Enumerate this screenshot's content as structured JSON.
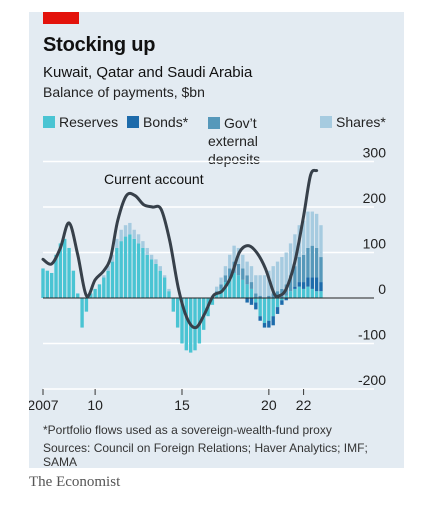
{
  "colors": {
    "reserves": "#4ac4d3",
    "bonds": "#1d6bab",
    "deposits": "#5698ba",
    "shares": "#a6cbe0",
    "current_account": "#37404a",
    "economist_red": "#e3120b"
  },
  "header": {
    "title": "Stocking up",
    "subtitle": "Kuwait, Qatar and Saudi Arabia",
    "unit": "Balance of payments, $bn"
  },
  "footer": {
    "footnote": "*Portfolio flows used as a sovereign-wealth-fund proxy",
    "sources": "Sources: Council on Foreign Relations; Haver Analytics; IMF; SAMA",
    "publisher": "The Economist"
  },
  "chart_data": {
    "type": "bar",
    "stacked": true,
    "frequency": "quarterly",
    "ylim": [
      -200,
      300
    ],
    "yticks": [
      300,
      200,
      100,
      0,
      -100,
      -200
    ],
    "y_axis_side": "right",
    "x_ticks": [
      {
        "label": "2007",
        "year": 2007
      },
      {
        "label": "10",
        "year": 2010
      },
      {
        "label": "15",
        "year": 2015
      },
      {
        "label": "20",
        "year": 2020
      },
      {
        "label": "22",
        "year": 2022
      }
    ],
    "xlim": [
      2007,
      2023.75
    ],
    "grid": "horizontal",
    "annotations": [
      {
        "text": "Current account"
      }
    ],
    "series": [
      {
        "name": "Reserves",
        "key": "reserves",
        "kind": "bar",
        "points": [
          [
            2007,
            65
          ],
          [
            2007.25,
            60
          ],
          [
            2007.5,
            55
          ],
          [
            2007.75,
            95
          ],
          [
            2008,
            120
          ],
          [
            2008.25,
            130
          ],
          [
            2008.5,
            110
          ],
          [
            2008.75,
            60
          ],
          [
            2009,
            10
          ],
          [
            2009.25,
            -65
          ],
          [
            2009.5,
            -30
          ],
          [
            2009.75,
            10
          ],
          [
            2010,
            20
          ],
          [
            2010.25,
            30
          ],
          [
            2010.5,
            45
          ],
          [
            2010.75,
            60
          ],
          [
            2011,
            80
          ],
          [
            2011.25,
            110
          ],
          [
            2011.5,
            125
          ],
          [
            2011.75,
            135
          ],
          [
            2012,
            140
          ],
          [
            2012.25,
            130
          ],
          [
            2012.5,
            120
          ],
          [
            2012.75,
            110
          ],
          [
            2013,
            95
          ],
          [
            2013.25,
            85
          ],
          [
            2013.5,
            75
          ],
          [
            2013.75,
            60
          ],
          [
            2014,
            45
          ],
          [
            2014.25,
            15
          ],
          [
            2014.5,
            -30
          ],
          [
            2014.75,
            -65
          ],
          [
            2015,
            -100
          ],
          [
            2015.25,
            -115
          ],
          [
            2015.5,
            -120
          ],
          [
            2015.75,
            -115
          ],
          [
            2016,
            -100
          ],
          [
            2016.25,
            -70
          ],
          [
            2016.5,
            -40
          ],
          [
            2016.75,
            -15
          ],
          [
            2017,
            10
          ],
          [
            2017.25,
            20
          ],
          [
            2017.5,
            35
          ],
          [
            2017.75,
            45
          ],
          [
            2018,
            55
          ],
          [
            2018.25,
            50
          ],
          [
            2018.5,
            40
          ],
          [
            2018.75,
            30
          ],
          [
            2019,
            20
          ],
          [
            2019.25,
            -10
          ],
          [
            2019.5,
            -40
          ],
          [
            2019.75,
            -55
          ],
          [
            2020,
            -50
          ],
          [
            2020.25,
            -40
          ],
          [
            2020.5,
            -20
          ],
          [
            2020.75,
            -5
          ],
          [
            2021,
            5
          ],
          [
            2021.25,
            15
          ],
          [
            2021.5,
            20
          ],
          [
            2021.75,
            25
          ],
          [
            2022,
            20
          ],
          [
            2022.25,
            25
          ],
          [
            2022.5,
            20
          ],
          [
            2022.75,
            15
          ],
          [
            2023,
            15
          ]
        ]
      },
      {
        "name": "Bonds*",
        "key": "bonds",
        "kind": "bar",
        "points": [
          [
            2007,
            0
          ],
          [
            2007.25,
            0
          ],
          [
            2007.5,
            0
          ],
          [
            2007.75,
            0
          ],
          [
            2008,
            0
          ],
          [
            2008.25,
            0
          ],
          [
            2008.5,
            0
          ],
          [
            2008.75,
            0
          ],
          [
            2009,
            0
          ],
          [
            2009.25,
            0
          ],
          [
            2009.5,
            0
          ],
          [
            2009.75,
            0
          ],
          [
            2010,
            0
          ],
          [
            2010.25,
            0
          ],
          [
            2010.5,
            0
          ],
          [
            2010.75,
            0
          ],
          [
            2011,
            0
          ],
          [
            2011.25,
            0
          ],
          [
            2011.5,
            0
          ],
          [
            2011.75,
            0
          ],
          [
            2012,
            0
          ],
          [
            2012.25,
            0
          ],
          [
            2012.5,
            0
          ],
          [
            2012.75,
            0
          ],
          [
            2013,
            0
          ],
          [
            2013.25,
            0
          ],
          [
            2013.5,
            0
          ],
          [
            2013.75,
            0
          ],
          [
            2014,
            0
          ],
          [
            2014.25,
            0
          ],
          [
            2014.5,
            0
          ],
          [
            2014.75,
            0
          ],
          [
            2015,
            0
          ],
          [
            2015.25,
            0
          ],
          [
            2015.5,
            0
          ],
          [
            2015.75,
            0
          ],
          [
            2016,
            0
          ],
          [
            2016.25,
            0
          ],
          [
            2016.5,
            0
          ],
          [
            2016.75,
            0
          ],
          [
            2017,
            0
          ],
          [
            2017.25,
            0
          ],
          [
            2017.5,
            0
          ],
          [
            2017.75,
            0
          ],
          [
            2018,
            0
          ],
          [
            2018.25,
            0
          ],
          [
            2018.5,
            0
          ],
          [
            2018.75,
            -10
          ],
          [
            2019,
            -15
          ],
          [
            2019.25,
            -15
          ],
          [
            2019.5,
            -10
          ],
          [
            2019.75,
            -10
          ],
          [
            2020,
            -15
          ],
          [
            2020.25,
            -20
          ],
          [
            2020.5,
            -15
          ],
          [
            2020.75,
            -10
          ],
          [
            2021,
            -5
          ],
          [
            2021.25,
            0
          ],
          [
            2021.5,
            5
          ],
          [
            2021.75,
            10
          ],
          [
            2022,
            15
          ],
          [
            2022.25,
            20
          ],
          [
            2022.5,
            25
          ],
          [
            2022.75,
            30
          ],
          [
            2023,
            20
          ]
        ]
      },
      {
        "name": "Gov’t external deposits",
        "key": "deposits",
        "kind": "bar",
        "points": [
          [
            2007,
            0
          ],
          [
            2007.25,
            0
          ],
          [
            2007.5,
            0
          ],
          [
            2007.75,
            0
          ],
          [
            2008,
            0
          ],
          [
            2008.25,
            0
          ],
          [
            2008.5,
            0
          ],
          [
            2008.75,
            0
          ],
          [
            2009,
            0
          ],
          [
            2009.25,
            0
          ],
          [
            2009.5,
            0
          ],
          [
            2009.75,
            0
          ],
          [
            2010,
            0
          ],
          [
            2010.25,
            0
          ],
          [
            2010.5,
            0
          ],
          [
            2010.75,
            0
          ],
          [
            2011,
            0
          ],
          [
            2011.25,
            0
          ],
          [
            2011.5,
            0
          ],
          [
            2011.75,
            0
          ],
          [
            2012,
            0
          ],
          [
            2012.25,
            0
          ],
          [
            2012.5,
            0
          ],
          [
            2012.75,
            0
          ],
          [
            2013,
            0
          ],
          [
            2013.25,
            0
          ],
          [
            2013.5,
            0
          ],
          [
            2013.75,
            0
          ],
          [
            2014,
            0
          ],
          [
            2014.25,
            0
          ],
          [
            2014.5,
            0
          ],
          [
            2014.75,
            0
          ],
          [
            2015,
            0
          ],
          [
            2015.25,
            0
          ],
          [
            2015.5,
            0
          ],
          [
            2015.75,
            0
          ],
          [
            2016,
            0
          ],
          [
            2016.25,
            0
          ],
          [
            2016.5,
            0
          ],
          [
            2016.75,
            0
          ],
          [
            2017,
            5
          ],
          [
            2017.25,
            10
          ],
          [
            2017.5,
            15
          ],
          [
            2017.75,
            20
          ],
          [
            2018,
            25
          ],
          [
            2018.25,
            25
          ],
          [
            2018.5,
            25
          ],
          [
            2018.75,
            20
          ],
          [
            2019,
            15
          ],
          [
            2019.25,
            10
          ],
          [
            2019.5,
            5
          ],
          [
            2019.75,
            0
          ],
          [
            2020,
            5
          ],
          [
            2020.25,
            10
          ],
          [
            2020.5,
            15
          ],
          [
            2020.75,
            20
          ],
          [
            2021,
            25
          ],
          [
            2021.25,
            35
          ],
          [
            2021.5,
            45
          ],
          [
            2021.75,
            55
          ],
          [
            2022,
            60
          ],
          [
            2022.25,
            65
          ],
          [
            2022.5,
            70
          ],
          [
            2022.75,
            65
          ],
          [
            2023,
            55
          ]
        ]
      },
      {
        "name": "Shares*",
        "key": "shares",
        "kind": "bar",
        "points": [
          [
            2007,
            0
          ],
          [
            2007.25,
            0
          ],
          [
            2007.5,
            0
          ],
          [
            2007.75,
            0
          ],
          [
            2008,
            0
          ],
          [
            2008.25,
            0
          ],
          [
            2008.5,
            0
          ],
          [
            2008.75,
            0
          ],
          [
            2009,
            0
          ],
          [
            2009.25,
            0
          ],
          [
            2009.5,
            0
          ],
          [
            2009.75,
            0
          ],
          [
            2010,
            0
          ],
          [
            2010.25,
            0
          ],
          [
            2010.5,
            5
          ],
          [
            2010.75,
            10
          ],
          [
            2011,
            15
          ],
          [
            2011.25,
            20
          ],
          [
            2011.5,
            25
          ],
          [
            2011.75,
            25
          ],
          [
            2012,
            25
          ],
          [
            2012.25,
            20
          ],
          [
            2012.5,
            20
          ],
          [
            2012.75,
            15
          ],
          [
            2013,
            15
          ],
          [
            2013.25,
            10
          ],
          [
            2013.5,
            10
          ],
          [
            2013.75,
            10
          ],
          [
            2014,
            5
          ],
          [
            2014.25,
            5
          ],
          [
            2014.5,
            0
          ],
          [
            2014.75,
            0
          ],
          [
            2015,
            0
          ],
          [
            2015.25,
            0
          ],
          [
            2015.5,
            0
          ],
          [
            2015.75,
            0
          ],
          [
            2016,
            0
          ],
          [
            2016.25,
            0
          ],
          [
            2016.5,
            0
          ],
          [
            2016.75,
            5
          ],
          [
            2017,
            10
          ],
          [
            2017.25,
            15
          ],
          [
            2017.5,
            20
          ],
          [
            2017.75,
            30
          ],
          [
            2018,
            35
          ],
          [
            2018.25,
            35
          ],
          [
            2018.5,
            30
          ],
          [
            2018.75,
            30
          ],
          [
            2019,
            35
          ],
          [
            2019.25,
            40
          ],
          [
            2019.5,
            45
          ],
          [
            2019.75,
            50
          ],
          [
            2020,
            55
          ],
          [
            2020.25,
            60
          ],
          [
            2020.5,
            65
          ],
          [
            2020.75,
            70
          ],
          [
            2021,
            70
          ],
          [
            2021.25,
            70
          ],
          [
            2021.5,
            70
          ],
          [
            2021.75,
            70
          ],
          [
            2022,
            75
          ],
          [
            2022.25,
            80
          ],
          [
            2022.5,
            75
          ],
          [
            2022.75,
            75
          ],
          [
            2023,
            70
          ]
        ]
      },
      {
        "name": "Current account",
        "key": "current_account",
        "kind": "line",
        "points": [
          [
            2007,
            85
          ],
          [
            2007.5,
            75
          ],
          [
            2008,
            110
          ],
          [
            2008.5,
            165
          ],
          [
            2009,
            95
          ],
          [
            2009.5,
            5
          ],
          [
            2010,
            40
          ],
          [
            2010.5,
            60
          ],
          [
            2010.9,
            90
          ],
          [
            2011.3,
            170
          ],
          [
            2011.8,
            225
          ],
          [
            2012.3,
            225
          ],
          [
            2012.8,
            205
          ],
          [
            2013.3,
            200
          ],
          [
            2013.8,
            195
          ],
          [
            2014.3,
            125
          ],
          [
            2014.8,
            20
          ],
          [
            2015.3,
            -45
          ],
          [
            2015.8,
            -65
          ],
          [
            2016.3,
            -35
          ],
          [
            2016.8,
            5
          ],
          [
            2017.3,
            15
          ],
          [
            2017.8,
            45
          ],
          [
            2018.3,
            100
          ],
          [
            2018.8,
            115
          ],
          [
            2019.3,
            100
          ],
          [
            2019.8,
            65
          ],
          [
            2020.3,
            10
          ],
          [
            2020.6,
            5
          ],
          [
            2021,
            20
          ],
          [
            2021.5,
            80
          ],
          [
            2022,
            180
          ],
          [
            2022.4,
            270
          ],
          [
            2022.75,
            280
          ]
        ]
      }
    ]
  }
}
